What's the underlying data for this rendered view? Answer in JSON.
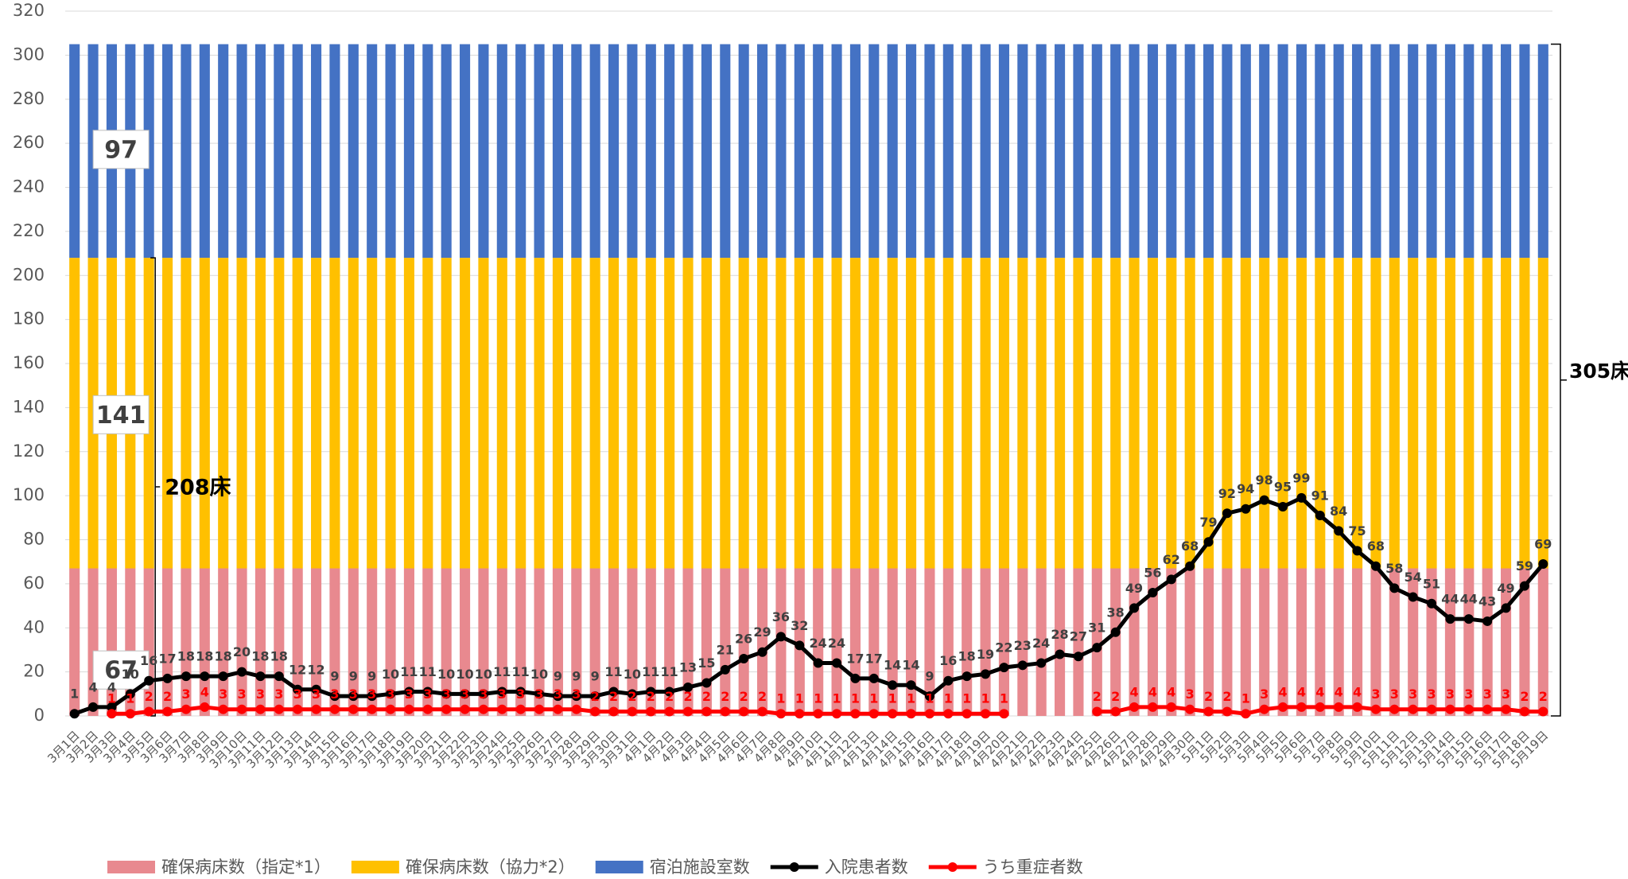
{
  "chart_data": {
    "type": "bar",
    "categories": [
      "3月1日",
      "3月2日",
      "3月3日",
      "3月4日",
      "3月5日",
      "3月6日",
      "3月7日",
      "3月8日",
      "3月9日",
      "3月10日",
      "3月11日",
      "3月12日",
      "3月13日",
      "3月14日",
      "3月15日",
      "3月16日",
      "3月17日",
      "3月18日",
      "3月19日",
      "3月20日",
      "3月21日",
      "3月22日",
      "3月23日",
      "3月24日",
      "3月25日",
      "3月26日",
      "3月27日",
      "3月28日",
      "3月29日",
      "3月30日",
      "3月31日",
      "4月1日",
      "4月2日",
      "4月3日",
      "4月4日",
      "4月5日",
      "4月6日",
      "4月7日",
      "4月8日",
      "4月9日",
      "4月10日",
      "4月11日",
      "4月12日",
      "4月13日",
      "4月14日",
      "4月15日",
      "4月16日",
      "4月17日",
      "4月18日",
      "4月19日",
      "4月20日",
      "4月21日",
      "4月22日",
      "4月23日",
      "4月24日",
      "4月25日",
      "4月26日",
      "4月27日",
      "4月28日",
      "4月29日",
      "4月30日",
      "5月1日",
      "5月2日",
      "5月3日",
      "5月4日",
      "5月5日",
      "5月6日",
      "5月7日",
      "5月8日",
      "5月9日",
      "5月10日",
      "5月11日",
      "5月12日",
      "5月13日",
      "5月14日",
      "5月15日",
      "5月16日",
      "5月17日",
      "5月18日",
      "5月19日"
    ],
    "series": [
      {
        "name": "確保病床数（指定*1）",
        "color": "#e8898f",
        "type": "bar",
        "values": [
          67,
          67,
          67,
          67,
          67,
          67,
          67,
          67,
          67,
          67,
          67,
          67,
          67,
          67,
          67,
          67,
          67,
          67,
          67,
          67,
          67,
          67,
          67,
          67,
          67,
          67,
          67,
          67,
          67,
          67,
          67,
          67,
          67,
          67,
          67,
          67,
          67,
          67,
          67,
          67,
          67,
          67,
          67,
          67,
          67,
          67,
          67,
          67,
          67,
          67,
          67,
          67,
          67,
          67,
          67,
          67,
          67,
          67,
          67,
          67,
          67,
          67,
          67,
          67,
          67,
          67,
          67,
          67,
          67,
          67,
          67,
          67,
          67,
          67,
          67,
          67,
          67,
          67,
          67,
          67
        ]
      },
      {
        "name": "確保病床数（協力*2）",
        "color": "#ffc000",
        "type": "bar",
        "values": [
          141,
          141,
          141,
          141,
          141,
          141,
          141,
          141,
          141,
          141,
          141,
          141,
          141,
          141,
          141,
          141,
          141,
          141,
          141,
          141,
          141,
          141,
          141,
          141,
          141,
          141,
          141,
          141,
          141,
          141,
          141,
          141,
          141,
          141,
          141,
          141,
          141,
          141,
          141,
          141,
          141,
          141,
          141,
          141,
          141,
          141,
          141,
          141,
          141,
          141,
          141,
          141,
          141,
          141,
          141,
          141,
          141,
          141,
          141,
          141,
          141,
          141,
          141,
          141,
          141,
          141,
          141,
          141,
          141,
          141,
          141,
          141,
          141,
          141,
          141,
          141,
          141,
          141,
          141,
          141
        ]
      },
      {
        "name": "宿泊施設室数",
        "color": "#4472c4",
        "type": "bar",
        "values": [
          97,
          97,
          97,
          97,
          97,
          97,
          97,
          97,
          97,
          97,
          97,
          97,
          97,
          97,
          97,
          97,
          97,
          97,
          97,
          97,
          97,
          97,
          97,
          97,
          97,
          97,
          97,
          97,
          97,
          97,
          97,
          97,
          97,
          97,
          97,
          97,
          97,
          97,
          97,
          97,
          97,
          97,
          97,
          97,
          97,
          97,
          97,
          97,
          97,
          97,
          97,
          97,
          97,
          97,
          97,
          97,
          97,
          97,
          97,
          97,
          97,
          97,
          97,
          97,
          97,
          97,
          97,
          97,
          97,
          97,
          97,
          97,
          97,
          97,
          97,
          97,
          97,
          97,
          97,
          97
        ]
      },
      {
        "name": "入院患者数",
        "color": "#000000",
        "type": "line",
        "label_color": "#404040",
        "values": [
          1,
          4,
          4,
          10,
          16,
          17,
          18,
          18,
          18,
          20,
          18,
          18,
          12,
          12,
          9,
          9,
          9,
          10,
          11,
          11,
          10,
          10,
          10,
          11,
          11,
          10,
          9,
          9,
          9,
          11,
          10,
          11,
          11,
          13,
          15,
          21,
          26,
          29,
          36,
          32,
          24,
          24,
          17,
          17,
          14,
          14,
          9,
          16,
          18,
          19,
          22,
          23,
          24,
          28,
          27,
          31,
          38,
          49,
          56,
          62,
          68,
          79,
          92,
          94,
          98,
          95,
          99,
          91,
          84,
          75,
          68,
          58,
          54,
          51,
          44,
          44,
          43,
          49,
          59,
          69
        ]
      },
      {
        "name": "うち重症者数",
        "color": "#ff0000",
        "type": "line",
        "label_color": "#ff0000",
        "values": [
          null,
          null,
          1,
          1,
          2,
          2,
          3,
          4,
          3,
          3,
          3,
          3,
          3,
          3,
          3,
          3,
          3,
          3,
          3,
          3,
          3,
          3,
          3,
          3,
          3,
          3,
          3,
          3,
          2,
          2,
          2,
          2,
          2,
          2,
          2,
          2,
          2,
          2,
          1,
          1,
          1,
          1,
          1,
          1,
          1,
          1,
          1,
          1,
          1,
          1,
          1,
          null,
          null,
          null,
          null,
          2,
          2,
          4,
          4,
          4,
          3,
          2,
          2,
          1,
          3,
          4,
          4,
          4,
          4,
          4,
          3,
          3,
          3,
          3,
          3,
          3,
          3,
          3,
          2,
          2
        ]
      }
    ],
    "annotations": [
      "208床",
      "305床"
    ],
    "ylim": [
      0,
      320
    ],
    "yticks": [
      0,
      20,
      40,
      60,
      80,
      100,
      120,
      140,
      160,
      180,
      200,
      220,
      240,
      260,
      280,
      300,
      320
    ],
    "grid": true,
    "legend": "bottom"
  }
}
